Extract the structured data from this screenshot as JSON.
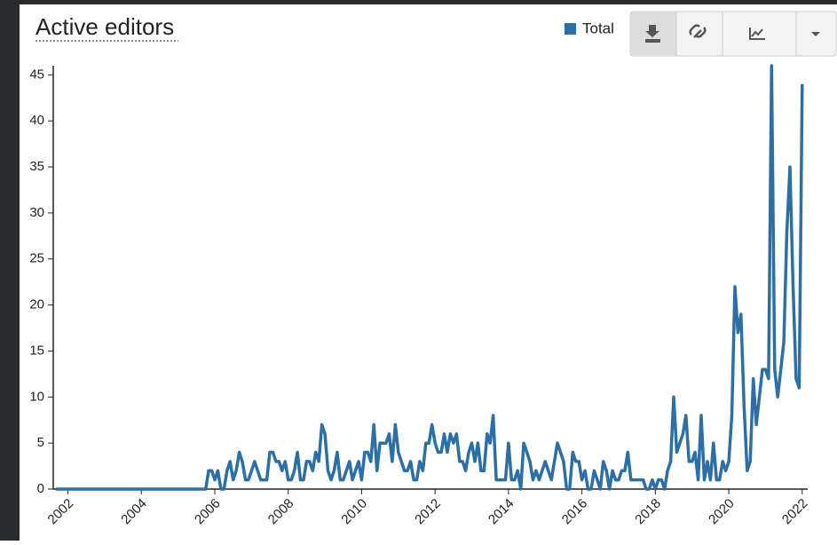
{
  "chart_data": {
    "type": "line",
    "title": "Active editors",
    "x": [
      2001.667,
      2005.75,
      2005.833,
      2005.917,
      2006,
      2006.083,
      2006.167,
      2006.25,
      2006.333,
      2006.417,
      2006.5,
      2006.583,
      2006.667,
      2006.75,
      2006.833,
      2006.917,
      2007,
      2007.083,
      2007.167,
      2007.25,
      2007.333,
      2007.417,
      2007.5,
      2007.583,
      2007.667,
      2007.75,
      2007.833,
      2007.917,
      2008,
      2008.083,
      2008.167,
      2008.25,
      2008.333,
      2008.417,
      2008.5,
      2008.583,
      2008.667,
      2008.75,
      2008.833,
      2008.917,
      2009,
      2009.083,
      2009.167,
      2009.25,
      2009.333,
      2009.417,
      2009.5,
      2009.583,
      2009.667,
      2009.75,
      2009.833,
      2009.917,
      2010,
      2010.083,
      2010.167,
      2010.25,
      2010.333,
      2010.417,
      2010.5,
      2010.583,
      2010.667,
      2010.75,
      2010.833,
      2010.917,
      2011,
      2011.083,
      2011.167,
      2011.25,
      2011.333,
      2011.417,
      2011.5,
      2011.583,
      2011.667,
      2011.75,
      2011.833,
      2011.917,
      2012,
      2012.083,
      2012.167,
      2012.25,
      2012.333,
      2012.417,
      2012.5,
      2012.583,
      2012.667,
      2012.75,
      2012.833,
      2012.917,
      2013,
      2013.083,
      2013.167,
      2013.25,
      2013.333,
      2013.417,
      2013.5,
      2013.583,
      2013.667,
      2013.75,
      2013.833,
      2013.917,
      2014,
      2014.083,
      2014.167,
      2014.25,
      2014.333,
      2014.417,
      2014.5,
      2014.583,
      2014.667,
      2014.75,
      2014.833,
      2014.917,
      2015,
      2015.083,
      2015.167,
      2015.25,
      2015.333,
      2015.417,
      2015.5,
      2015.583,
      2015.667,
      2015.75,
      2015.833,
      2015.917,
      2016,
      2016.083,
      2016.167,
      2016.25,
      2016.333,
      2016.417,
      2016.5,
      2016.583,
      2016.667,
      2016.75,
      2016.833,
      2016.917,
      2017,
      2017.083,
      2017.167,
      2017.25,
      2017.333,
      2017.417,
      2017.5,
      2017.583,
      2017.667,
      2017.75,
      2017.833,
      2017.917,
      2018,
      2018.083,
      2018.167,
      2018.25,
      2018.333,
      2018.417,
      2018.5,
      2018.583,
      2018.667,
      2018.75,
      2018.833,
      2018.917,
      2019,
      2019.083,
      2019.167,
      2019.25,
      2019.333,
      2019.417,
      2019.5,
      2019.583,
      2019.667,
      2019.75,
      2019.833,
      2019.917,
      2020,
      2020.083,
      2020.167,
      2020.25,
      2020.333,
      2020.417,
      2020.5,
      2020.583,
      2020.667,
      2020.75,
      2020.833,
      2020.917,
      2021,
      2021.083,
      2021.167,
      2021.25,
      2021.333,
      2021.417,
      2021.5,
      2021.583,
      2021.667,
      2021.75,
      2021.833,
      2021.917,
      2022
    ],
    "series": [
      {
        "name": "Total",
        "color": "#2c6fa6",
        "values": [
          0,
          0,
          2,
          2,
          1,
          2,
          0,
          0,
          2,
          3,
          1,
          2,
          4,
          3,
          1,
          1,
          2,
          3,
          2,
          1,
          1,
          1,
          4,
          4,
          3,
          3,
          2,
          3,
          1,
          1,
          2,
          4,
          1,
          1,
          3,
          3,
          2,
          4,
          3,
          7,
          6,
          2,
          1,
          2,
          4,
          1,
          1,
          2,
          3,
          1,
          2,
          3,
          1,
          4,
          4,
          3,
          7,
          2,
          5,
          5,
          5,
          6,
          3,
          7,
          4,
          3,
          2,
          2,
          3,
          1,
          1,
          3,
          2,
          5,
          5,
          7,
          5,
          4,
          4,
          6,
          4,
          6,
          5,
          6,
          3,
          3,
          2,
          4,
          5,
          3,
          5,
          2,
          2,
          6,
          5,
          8,
          1,
          1,
          1,
          1,
          5,
          1,
          1,
          2,
          0,
          5,
          4,
          3,
          1,
          2,
          1,
          2,
          3,
          2,
          1,
          3,
          5,
          4,
          3,
          0,
          0,
          4,
          3,
          3,
          1,
          2,
          0,
          0,
          2,
          1,
          0,
          3,
          2,
          0,
          2,
          1,
          1,
          2,
          2,
          4,
          1,
          1,
          1,
          1,
          1,
          0,
          0,
          1,
          0,
          1,
          1,
          0,
          2,
          3,
          10,
          4,
          5,
          6,
          8,
          3,
          3,
          4,
          1,
          8,
          1,
          3,
          1,
          5,
          1,
          1,
          3,
          2,
          3,
          8,
          22,
          17,
          19,
          9,
          2,
          3,
          12,
          7,
          10,
          13,
          13,
          12,
          46,
          13,
          10,
          13,
          16,
          28,
          35,
          22,
          12,
          11,
          44
        ]
      }
    ],
    "xlim": [
      2001.6,
      2022.15
    ],
    "xticks": [
      2002,
      2004,
      2006,
      2008,
      2010,
      2012,
      2014,
      2016,
      2018,
      2020,
      2022
    ],
    "ylim": [
      0,
      46
    ],
    "yticks": [
      0,
      5,
      10,
      15,
      20,
      25,
      30,
      35,
      40,
      45
    ]
  }
}
